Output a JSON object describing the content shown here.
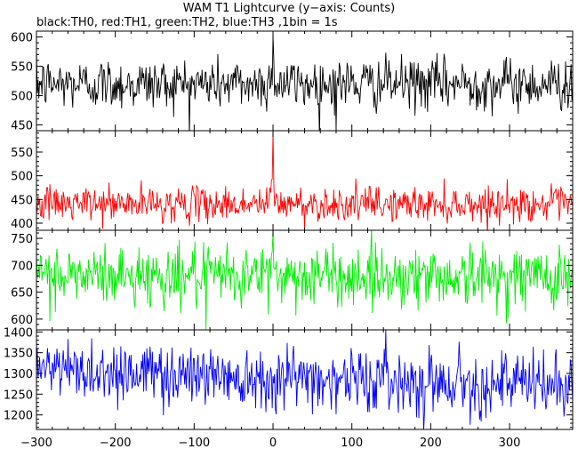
{
  "title": "WAM T1 Lightcurve (y−axis: Counts)",
  "subtitle": "black:TH0, red:TH1, green:TH2, blue:TH3 ,1bin = 1s",
  "chart_data": {
    "type": "line",
    "xlim": [
      -300,
      380
    ],
    "x_ticks": [
      -300,
      -200,
      -100,
      0,
      100,
      200,
      300
    ],
    "bin_seconds": 1,
    "panels": [
      {
        "name": "TH0",
        "color": "#000000",
        "ylim": [
          440,
          610
        ],
        "yticks": [
          450,
          500,
          550,
          600
        ],
        "mean": 520,
        "noise_sd": 22,
        "features": [
          {
            "x": 0,
            "peak": 603
          },
          {
            "x": 80,
            "min": 440
          }
        ]
      },
      {
        "name": "TH1",
        "color": "#ff0000",
        "ylim": [
          385,
          595
        ],
        "yticks": [
          400,
          450,
          500,
          550
        ],
        "mean": 440,
        "noise_sd": 18,
        "features": [
          {
            "x": 0,
            "peak": 590
          }
        ]
      },
      {
        "name": "TH2",
        "color": "#00ee00",
        "ylim": [
          580,
          765
        ],
        "yticks": [
          600,
          650,
          700,
          750
        ],
        "mean": 680,
        "noise_sd": 28,
        "features": [
          {
            "x": 0,
            "peak": 765
          },
          {
            "x": -85,
            "min": 580
          }
        ]
      },
      {
        "name": "TH3",
        "color": "#0000ff",
        "ylim": [
          1165,
          1405
        ],
        "yticks": [
          1200,
          1250,
          1300,
          1350,
          1400
        ],
        "mean": 1290,
        "noise_sd": 38,
        "trend": [
          {
            "x": -300,
            "y": 1310
          },
          {
            "x": 380,
            "y": 1270
          }
        ]
      }
    ]
  }
}
